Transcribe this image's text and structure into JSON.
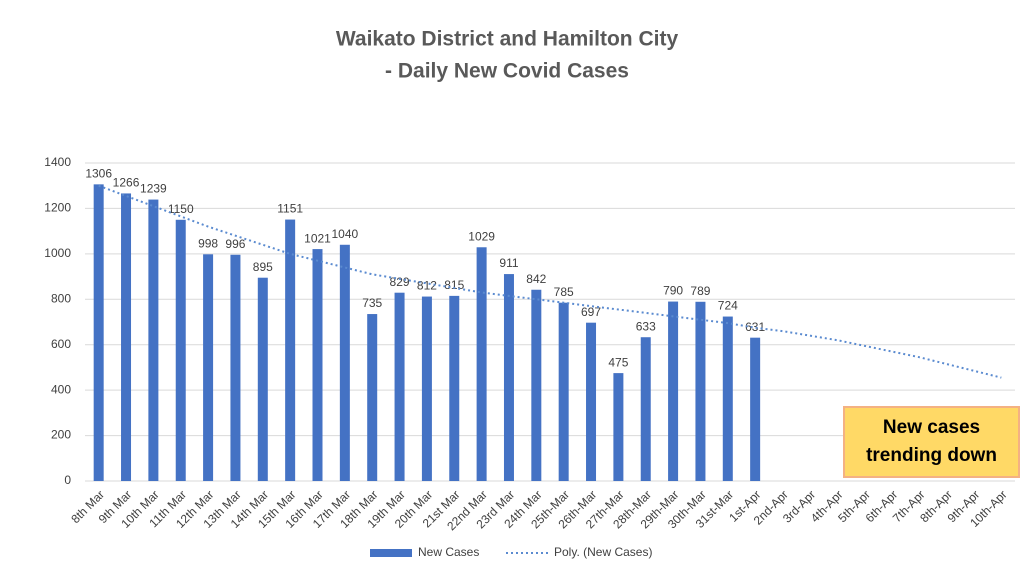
{
  "chart_data": {
    "type": "bar",
    "title": [
      "Waikato District and Hamilton City",
      "- Daily New Covid Cases"
    ],
    "categories": [
      "8th Mar",
      "9th Mar",
      "10th Mar",
      "11th Mar",
      "12th Mar",
      "13th Mar",
      "14th Mar",
      "15th Mar",
      "16th Mar",
      "17th Mar",
      "18th Mar",
      "19th Mar",
      "20th Mar",
      "21st Mar",
      "22nd Mar",
      "23rd Mar",
      "24th Mar",
      "25th-Mar",
      "26th-Mar",
      "27th-Mar",
      "28th-Mar",
      "29th-Mar",
      "30th-Mar",
      "31st-Mar",
      "1st-Apr",
      "2nd-Apr",
      "3rd-Apr",
      "4th-Apr",
      "5th-Apr",
      "6th-Apr",
      "7th-Apr",
      "8th-Apr",
      "9th-Apr",
      "10th-Apr"
    ],
    "series": [
      {
        "name": "New Cases",
        "color": "#4472c4",
        "values": [
          1306,
          1266,
          1239,
          1150,
          998,
          996,
          895,
          1151,
          1021,
          1040,
          735,
          829,
          812,
          815,
          1029,
          911,
          842,
          785,
          697,
          475,
          633,
          790,
          789,
          724,
          631,
          null,
          null,
          null,
          null,
          null,
          null,
          null,
          null,
          null
        ]
      },
      {
        "name": "Poly. (New Cases)",
        "type": "line",
        "color": "#5b8bd0",
        "values": [
          1300,
          1255,
          1210,
          1165,
          1120,
          1080,
          1040,
          1000,
          970,
          940,
          910,
          890,
          870,
          850,
          830,
          815,
          800,
          785,
          770,
          755,
          740,
          725,
          710,
          695,
          675,
          660,
          640,
          620,
          595,
          570,
          545,
          515,
          485,
          455
        ]
      }
    ],
    "ylim": [
      0,
      1400
    ],
    "yticks": [
      0,
      200,
      400,
      600,
      800,
      1000,
      1200,
      1400
    ],
    "grid": true,
    "legend": "bottom",
    "annotation": "New cases trending down"
  }
}
